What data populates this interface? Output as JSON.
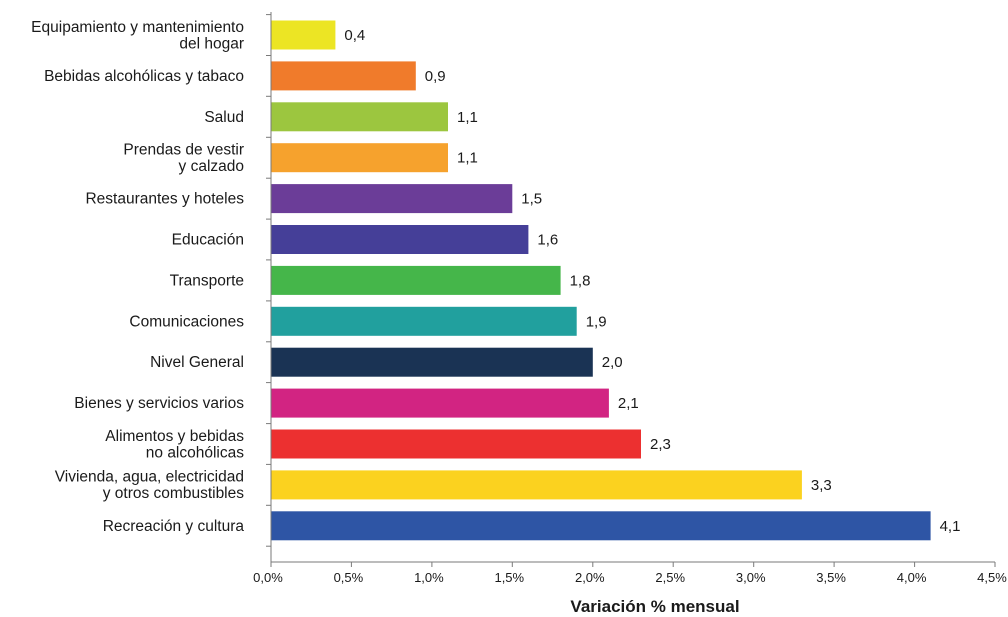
{
  "chart_data": {
    "type": "bar",
    "orientation": "horizontal",
    "xlabel": "Variación % mensual",
    "xlim": [
      0,
      4.5
    ],
    "xticks": [
      "0,0%",
      "0,5%",
      "1,0%",
      "1,5%",
      "2,0%",
      "2,5%",
      "3,0%",
      "3,5%",
      "4,0%",
      "4,5%"
    ],
    "grid": false,
    "legend": "none",
    "bars": [
      {
        "category": [
          "Equipamiento y mantenimiento",
          "del hogar"
        ],
        "value": 0.4,
        "label": "0,4",
        "color": "#ECE524"
      },
      {
        "category": [
          "Bebidas alcohólicas y tabaco"
        ],
        "value": 0.9,
        "label": "0,9",
        "color": "#F07B2B"
      },
      {
        "category": [
          "Salud"
        ],
        "value": 1.1,
        "label": "1,1",
        "color": "#9CC63F"
      },
      {
        "category": [
          "Prendas de vestir",
          "y calzado"
        ],
        "value": 1.1,
        "label": "1,1",
        "color": "#F6A22D"
      },
      {
        "category": [
          "Restaurantes y hoteles"
        ],
        "value": 1.5,
        "label": "1,5",
        "color": "#6B3D98"
      },
      {
        "category": [
          "Educación"
        ],
        "value": 1.6,
        "label": "1,6",
        "color": "#453F98"
      },
      {
        "category": [
          "Transporte"
        ],
        "value": 1.8,
        "label": "1,8",
        "color": "#45B64A"
      },
      {
        "category": [
          "Comunicaciones"
        ],
        "value": 1.9,
        "label": "1,9",
        "color": "#21A09E"
      },
      {
        "category": [
          "Nivel General"
        ],
        "value": 2.0,
        "label": "2,0",
        "color": "#1A3354"
      },
      {
        "category": [
          "Bienes y servicios varios"
        ],
        "value": 2.1,
        "label": "2,1",
        "color": "#D22482"
      },
      {
        "category": [
          "Alimentos y bebidas",
          "no alcohólicas"
        ],
        "value": 2.3,
        "label": "2,3",
        "color": "#EC3030"
      },
      {
        "category": [
          "Vivienda, agua, electricidad",
          "y otros combustibles"
        ],
        "value": 3.3,
        "label": "3,3",
        "color": "#FBD21F"
      },
      {
        "category": [
          "Recreación y cultura"
        ],
        "value": 4.1,
        "label": "4,1",
        "color": "#2E55A5"
      }
    ]
  }
}
